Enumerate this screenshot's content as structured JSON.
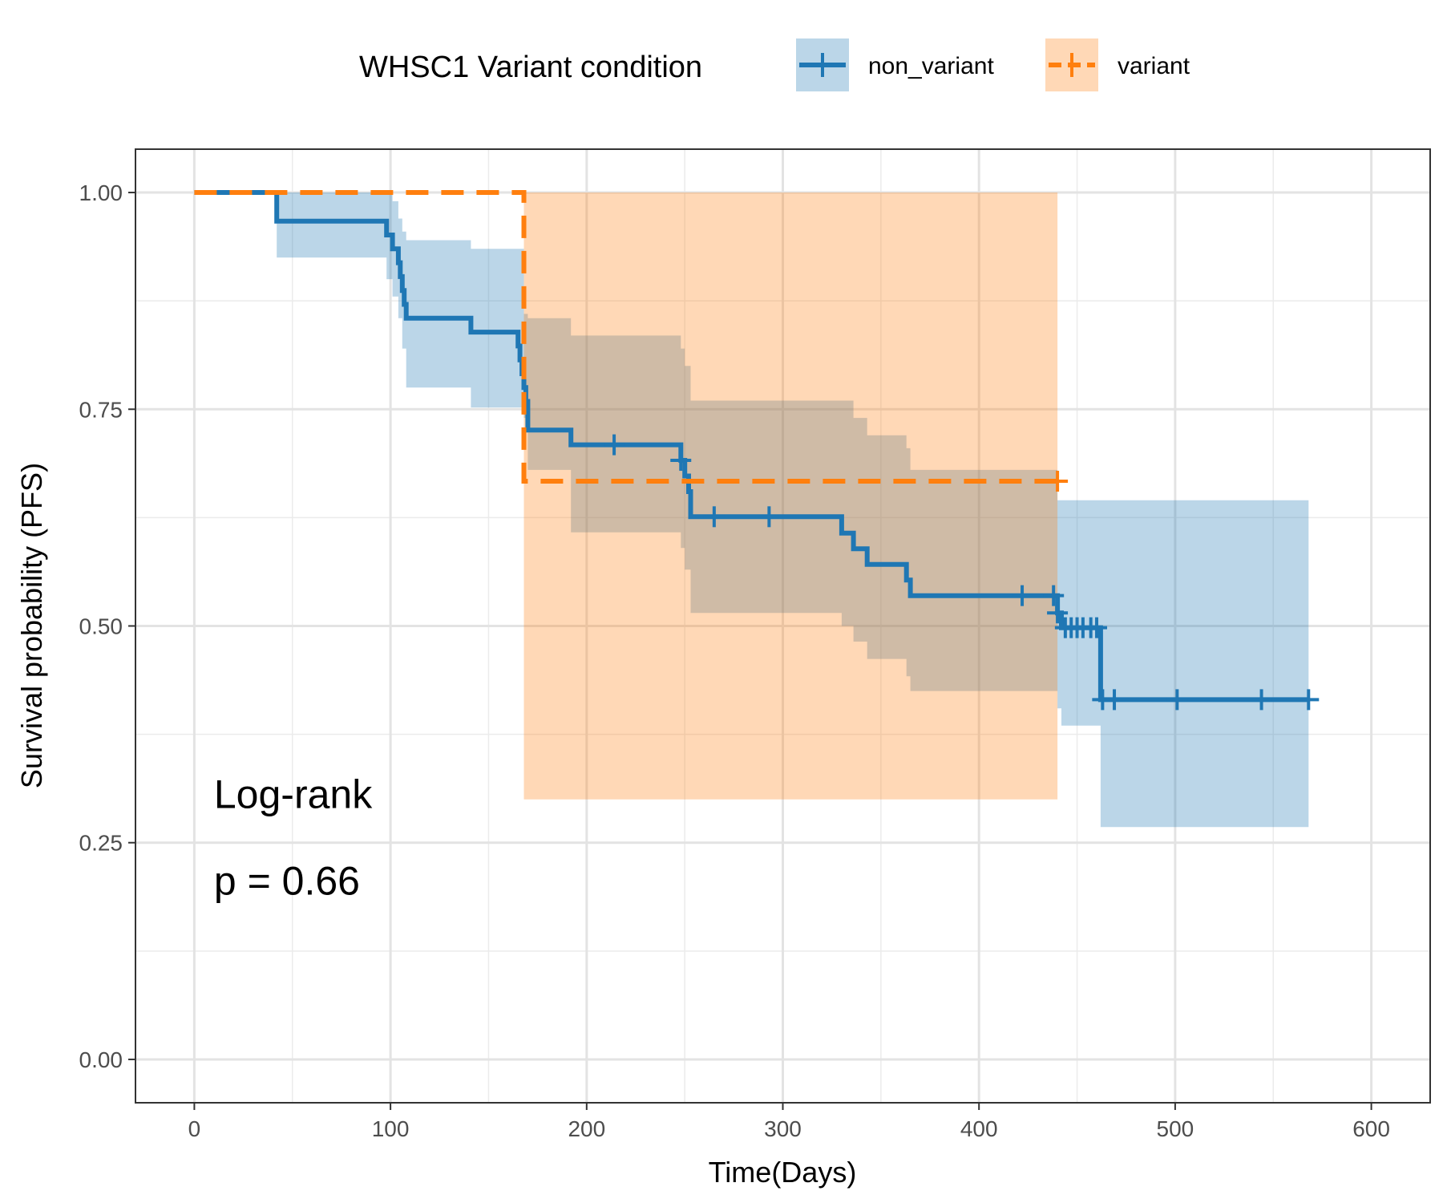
{
  "chart_data": {
    "type": "line",
    "subtype": "kaplan-meier",
    "title": "",
    "xlabel": "Time(Days)",
    "ylabel": "Survival probability (PFS)",
    "xlim": [
      -30,
      630
    ],
    "ylim": [
      -0.05,
      1.05
    ],
    "xticks": [
      0,
      100,
      200,
      300,
      400,
      500,
      600
    ],
    "yticks": [
      0.0,
      0.25,
      0.5,
      0.75,
      1.0
    ],
    "xtick_labels": [
      "0",
      "100",
      "200",
      "300",
      "400",
      "500",
      "600"
    ],
    "ytick_labels": [
      "0.00",
      "0.25",
      "0.50",
      "0.75",
      "1.00"
    ],
    "grid": true,
    "legend": {
      "title": "WHSC1 Variant condition",
      "position": "top",
      "entries": [
        {
          "label": "non_variant",
          "line_color": "#1f77b4",
          "fill_color": "#1f77b4"
        },
        {
          "label": "variant",
          "line_color": "#ff7f0e",
          "fill_color": "#ff7f0e"
        }
      ]
    },
    "annotations": [
      {
        "text": "Log-rank",
        "x": 10,
        "y": 0.29
      },
      {
        "text": "p = 0.66",
        "x": 10,
        "y": 0.19
      }
    ],
    "series": [
      {
        "name": "non_variant",
        "color": "#1f77b4",
        "dash": "solid",
        "steps": [
          [
            0,
            1.0
          ],
          [
            42,
            0.967
          ],
          [
            98,
            0.951
          ],
          [
            101,
            0.935
          ],
          [
            104,
            0.919
          ],
          [
            105,
            0.903
          ],
          [
            106,
            0.887
          ],
          [
            107,
            0.871
          ],
          [
            108,
            0.855
          ],
          [
            141,
            0.839
          ],
          [
            165,
            0.823
          ],
          [
            166,
            0.807
          ],
          [
            167,
            0.791
          ],
          [
            168,
            0.775
          ],
          [
            169,
            0.759
          ],
          [
            170,
            0.726
          ],
          [
            192,
            0.709
          ],
          [
            248,
            0.691
          ],
          [
            250,
            0.673
          ],
          [
            252,
            0.655
          ],
          [
            253,
            0.626
          ],
          [
            330,
            0.607
          ],
          [
            336,
            0.589
          ],
          [
            343,
            0.571
          ],
          [
            363,
            0.553
          ],
          [
            365,
            0.535
          ],
          [
            440,
            0.515
          ],
          [
            442,
            0.498
          ],
          [
            462,
            0.415
          ]
        ],
        "end_x": 568,
        "censors": [
          [
            214,
            0.709
          ],
          [
            248,
            0.691
          ],
          [
            265,
            0.626
          ],
          [
            293,
            0.626
          ],
          [
            422,
            0.535
          ],
          [
            438,
            0.535
          ],
          [
            440,
            0.515
          ],
          [
            444,
            0.498
          ],
          [
            447,
            0.498
          ],
          [
            450,
            0.498
          ],
          [
            453,
            0.498
          ],
          [
            457,
            0.498
          ],
          [
            460,
            0.498
          ],
          [
            463,
            0.415
          ],
          [
            469,
            0.415
          ],
          [
            501,
            0.415
          ],
          [
            544,
            0.415
          ],
          [
            568,
            0.415
          ]
        ],
        "ci": [
          [
            0,
            1.0,
            1.0
          ],
          [
            42,
            1.0,
            0.925
          ],
          [
            98,
            1.0,
            0.9
          ],
          [
            101,
            0.99,
            0.88
          ],
          [
            104,
            0.97,
            0.855
          ],
          [
            106,
            0.955,
            0.82
          ],
          [
            108,
            0.945,
            0.775
          ],
          [
            141,
            0.935,
            0.752
          ],
          [
            168,
            0.86,
            0.74
          ],
          [
            170,
            0.855,
            0.68
          ],
          [
            192,
            0.835,
            0.608
          ],
          [
            248,
            0.82,
            0.59
          ],
          [
            250,
            0.8,
            0.565
          ],
          [
            253,
            0.76,
            0.515
          ],
          [
            330,
            0.76,
            0.5
          ],
          [
            336,
            0.74,
            0.482
          ],
          [
            343,
            0.72,
            0.462
          ],
          [
            363,
            0.705,
            0.442
          ],
          [
            365,
            0.68,
            0.425
          ],
          [
            440,
            0.645,
            0.405
          ],
          [
            442,
            0.645,
            0.385
          ],
          [
            462,
            0.645,
            0.268
          ]
        ],
        "ci_end_x": 568
      },
      {
        "name": "variant",
        "color": "#ff7f0e",
        "dash": "dashed",
        "steps": [
          [
            0,
            1.0
          ],
          [
            168,
            0.667
          ]
        ],
        "end_x": 440,
        "censors": [
          [
            440,
            0.667
          ]
        ],
        "ci": [
          [
            168,
            1.0,
            0.3
          ]
        ],
        "ci_end_x": 440
      }
    ]
  }
}
